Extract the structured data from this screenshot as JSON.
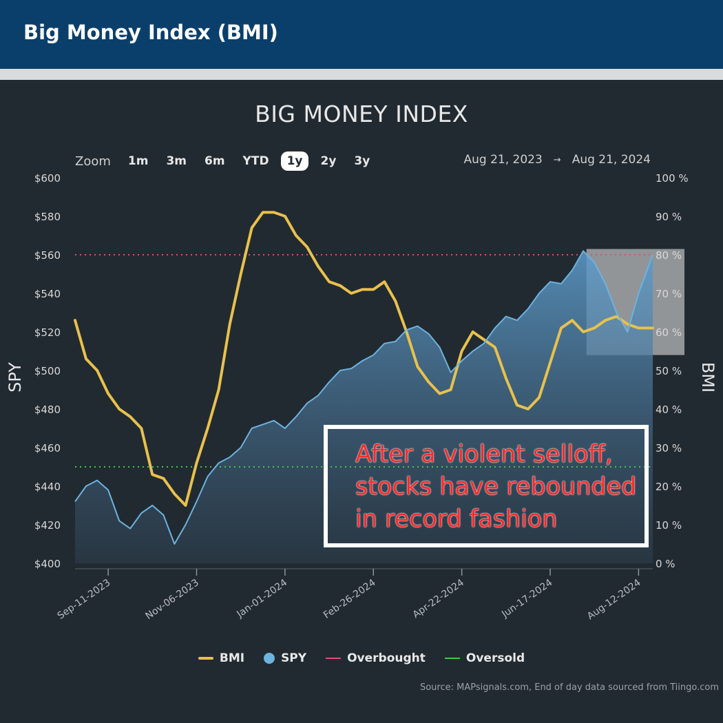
{
  "header": {
    "title": "Big Money Index (BMI)"
  },
  "zoom": {
    "label": "Zoom",
    "buttons": [
      "1m",
      "3m",
      "6m",
      "YTD",
      "1y",
      "2y",
      "3y"
    ],
    "active": "1y"
  },
  "range": {
    "from": "Aug 21, 2023",
    "arrow": "→",
    "to": "Aug 21, 2024"
  },
  "legend": [
    {
      "name": "BMI",
      "color": "#e8c14d",
      "kind": "line"
    },
    {
      "name": "SPY",
      "color": "#6db3e0",
      "kind": "dot"
    },
    {
      "name": "Overbought",
      "color": "#d94f7a",
      "kind": "thin"
    },
    {
      "name": "Oversold",
      "color": "#3ec94a",
      "kind": "thin"
    }
  ],
  "callout": {
    "lines": [
      "After a violent selloff,",
      "stocks have rebounded",
      "in record fashion"
    ]
  },
  "source": "Source: MAPsignals.com, End of day data sourced from Tiingo.com",
  "chart_data": {
    "type": "line",
    "title": "BIG MONEY INDEX",
    "xlabel": "",
    "ylabel": "SPY",
    "y2label": "BMI",
    "x_range": [
      "2023-08-21",
      "2024-08-21"
    ],
    "ylim": [
      400,
      600
    ],
    "y2lim": [
      0,
      100
    ],
    "yticks": [
      "$400",
      "$420",
      "$440",
      "$460",
      "$480",
      "$500",
      "$520",
      "$540",
      "$560",
      "$580",
      "$600"
    ],
    "y2ticks": [
      "0 %",
      "10 %",
      "20 %",
      "30 %",
      "40 %",
      "50 %",
      "60 %",
      "70 %",
      "80 %",
      "90 %",
      "100 %"
    ],
    "xticks": [
      "2023-09-11",
      "2023-11-06",
      "2024-01-01",
      "2024-02-26",
      "2024-04-22",
      "2024-06-17",
      "2024-08-12"
    ],
    "xtick_labels": [
      "Sep-11-2023",
      "Nov-06-2023",
      "Jan-01-2024",
      "Feb-26-2024",
      "Apr-22-2024",
      "Jun-17-2024",
      "Aug-12-2024"
    ],
    "overbought": 80,
    "oversold": 25,
    "highlight_range": [
      "2024-07-10",
      "2024-08-21"
    ],
    "grid": false,
    "legend_position": "bottom",
    "series": [
      {
        "name": "BMI",
        "axis": "right",
        "color": "#e8c14d",
        "x": [
          "2023-08-21",
          "2023-08-28",
          "2023-09-04",
          "2023-09-11",
          "2023-09-18",
          "2023-09-25",
          "2023-10-02",
          "2023-10-09",
          "2023-10-16",
          "2023-10-23",
          "2023-10-30",
          "2023-11-06",
          "2023-11-13",
          "2023-11-20",
          "2023-11-27",
          "2023-12-04",
          "2023-12-11",
          "2023-12-18",
          "2023-12-25",
          "2024-01-01",
          "2024-01-08",
          "2024-01-15",
          "2024-01-22",
          "2024-01-29",
          "2024-02-05",
          "2024-02-12",
          "2024-02-19",
          "2024-02-26",
          "2024-03-04",
          "2024-03-11",
          "2024-03-18",
          "2024-03-25",
          "2024-04-01",
          "2024-04-08",
          "2024-04-15",
          "2024-04-22",
          "2024-04-29",
          "2024-05-06",
          "2024-05-13",
          "2024-05-20",
          "2024-05-27",
          "2024-06-03",
          "2024-06-10",
          "2024-06-17",
          "2024-06-24",
          "2024-07-01",
          "2024-07-08",
          "2024-07-15",
          "2024-07-22",
          "2024-07-29",
          "2024-08-05",
          "2024-08-12",
          "2024-08-21"
        ],
        "values": [
          63,
          53,
          50,
          44,
          40,
          38,
          35,
          23,
          22,
          18,
          15,
          26,
          35,
          45,
          62,
          75,
          87,
          91,
          91,
          90,
          85,
          82,
          77,
          73,
          72,
          70,
          71,
          71,
          73,
          68,
          60,
          51,
          47,
          44,
          45,
          55,
          60,
          58,
          56,
          48,
          41,
          40,
          43,
          52,
          61,
          63,
          60,
          61,
          63,
          64,
          62,
          61,
          61
        ]
      },
      {
        "name": "SPY",
        "axis": "left",
        "color": "#6db3e0",
        "x": [
          "2023-08-21",
          "2023-08-28",
          "2023-09-04",
          "2023-09-11",
          "2023-09-18",
          "2023-09-25",
          "2023-10-02",
          "2023-10-09",
          "2023-10-16",
          "2023-10-23",
          "2023-10-30",
          "2023-11-06",
          "2023-11-13",
          "2023-11-20",
          "2023-11-27",
          "2023-12-04",
          "2023-12-11",
          "2023-12-18",
          "2023-12-25",
          "2024-01-01",
          "2024-01-08",
          "2024-01-15",
          "2024-01-22",
          "2024-01-29",
          "2024-02-05",
          "2024-02-12",
          "2024-02-19",
          "2024-02-26",
          "2024-03-04",
          "2024-03-11",
          "2024-03-18",
          "2024-03-25",
          "2024-04-01",
          "2024-04-08",
          "2024-04-15",
          "2024-04-22",
          "2024-04-29",
          "2024-05-06",
          "2024-05-13",
          "2024-05-20",
          "2024-05-27",
          "2024-06-03",
          "2024-06-10",
          "2024-06-17",
          "2024-06-24",
          "2024-07-01",
          "2024-07-08",
          "2024-07-15",
          "2024-07-22",
          "2024-07-29",
          "2024-08-05",
          "2024-08-12",
          "2024-08-21"
        ],
        "values": [
          432,
          440,
          443,
          438,
          422,
          418,
          426,
          430,
          425,
          410,
          420,
          432,
          445,
          452,
          455,
          460,
          470,
          472,
          474,
          470,
          476,
          483,
          487,
          494,
          500,
          501,
          505,
          508,
          514,
          515,
          521,
          523,
          519,
          512,
          499,
          505,
          510,
          514,
          522,
          528,
          526,
          532,
          540,
          546,
          545,
          552,
          562,
          556,
          545,
          530,
          520,
          540,
          560
        ]
      }
    ]
  }
}
